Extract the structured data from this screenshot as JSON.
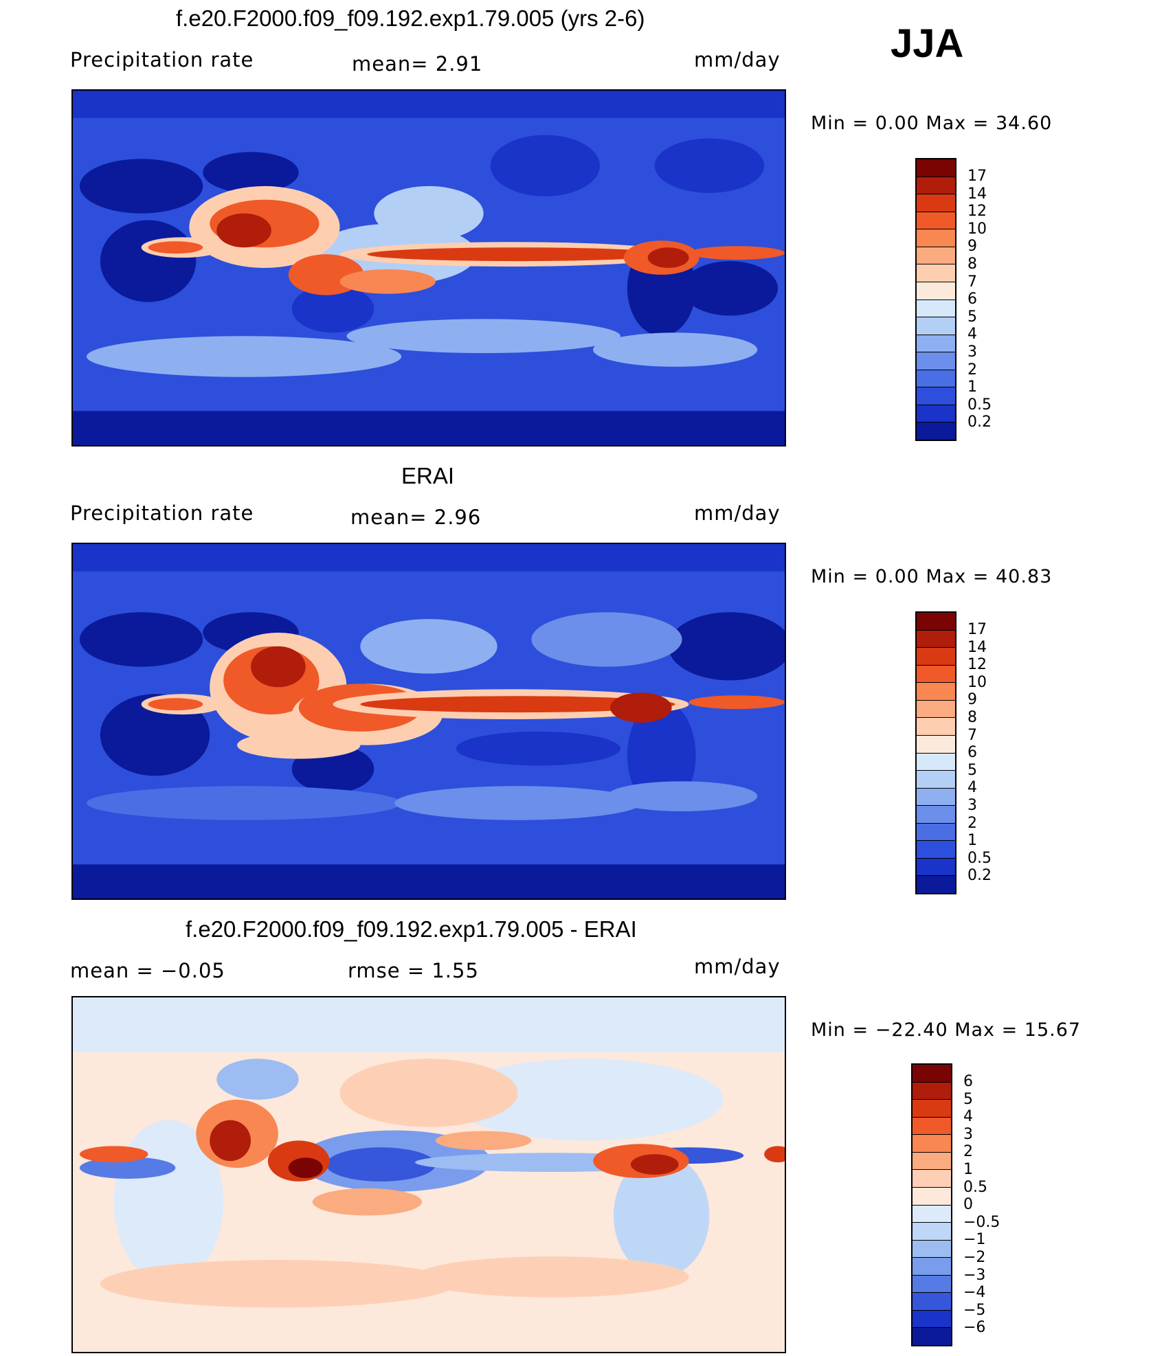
{
  "season": "JJA",
  "panels": [
    {
      "title": "f.e20.F2000.f09_f09.192.exp1.79.005 (yrs 2-6)",
      "left_label": "Precipitation  rate",
      "center_label": "mean=     2.91",
      "units": "mm/day",
      "min_label": "Min  =      0.00  Max  =     34.60",
      "colorbar_ticks": [
        "17",
        "14",
        "12",
        "10",
        "9",
        "8",
        "7",
        "6",
        "5",
        "4",
        "3",
        "2",
        "1",
        "0.5",
        "0.2"
      ]
    },
    {
      "title": "ERAI",
      "left_label": "Precipitation  rate",
      "center_label": "mean=     2.96",
      "units": "mm/day",
      "min_label": "Min  =      0.00  Max  =     40.83",
      "colorbar_ticks": [
        "17",
        "14",
        "12",
        "10",
        "9",
        "8",
        "7",
        "6",
        "5",
        "4",
        "3",
        "2",
        "1",
        "0.5",
        "0.2"
      ]
    },
    {
      "title": "f.e20.F2000.f09_f09.192.exp1.79.005 - ERAI",
      "left_label": "mean  =    −0.05",
      "center_label": "rmse  =      1.55",
      "units": "mm/day",
      "min_label": "Min  = −22.40  Max  =     15.67",
      "colorbar_ticks": [
        "6",
        "5",
        "4",
        "3",
        "2",
        "1",
        "0.5",
        "0",
        "−0.5",
        "−1",
        "−2",
        "−3",
        "−4",
        "−5",
        "−6"
      ]
    }
  ],
  "colors": {
    "precip_scale": [
      "#7a0403",
      "#b01d0a",
      "#d93a12",
      "#f05a28",
      "#f88752",
      "#fbab80",
      "#fdcfb0",
      "#fbe9dc",
      "#d6e8fa",
      "#b3cff5",
      "#8fb0f0",
      "#6b8fea",
      "#4a6fe4",
      "#2d4fdb",
      "#1a33c9",
      "#0a1a9a"
    ],
    "diff_scale": [
      "#7a0403",
      "#b01d0a",
      "#d93a12",
      "#f05a28",
      "#f88752",
      "#fbab80",
      "#fdd0b5",
      "#fde8dc",
      "#dceafa",
      "#bfd7f6",
      "#9dbcf2",
      "#7a9cec",
      "#577be5",
      "#3657da",
      "#1a33c9",
      "#0a1a9a"
    ]
  }
}
